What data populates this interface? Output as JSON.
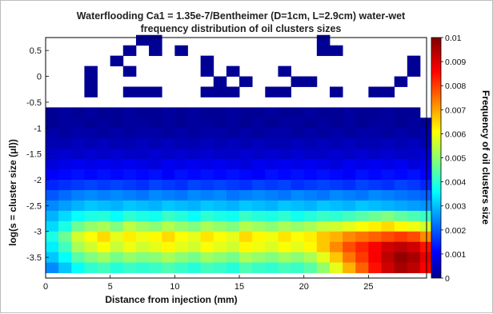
{
  "chart_data": {
    "type": "heatmap",
    "title": "Waterflooding Ca1 = 1.35e-7/Bentheimer (D=1cm, L=2.9cm) water-wet",
    "subtitle": "frequency distribution of oil clusters sizes",
    "xlabel": "Distance from injection (mm)",
    "ylabel": "log(s = cluster size (μl))",
    "colorbar_label": "Frequency of oil clusters size",
    "xlim": [
      0,
      29.5
    ],
    "ylim": [
      -3.9,
      0.75
    ],
    "clim": [
      0,
      0.01
    ],
    "colormap": "jet",
    "x_ticks": [
      "0",
      "5",
      "10",
      "15",
      "20",
      "25"
    ],
    "y_ticks": [
      "0.5",
      "0",
      "-0.5",
      "-1",
      "-1.5",
      "-2",
      "-2.5",
      "-3",
      "-3.5"
    ],
    "colorbar_ticks": [
      "0",
      "0.001",
      "0.002",
      "0.003",
      "0.004",
      "0.005",
      "0.006",
      "0.007",
      "0.008",
      "0.009",
      "0.01"
    ],
    "x_bin_width_mm": 1.0,
    "y_bin_centers": [
      0.7,
      0.5,
      0.3,
      0.1,
      -0.1,
      -0.3,
      -0.5,
      -0.7,
      -0.9,
      -1.1,
      -1.3,
      -1.5,
      -1.7,
      -1.9,
      -2.1,
      -2.3,
      -2.5,
      -2.7,
      -2.9,
      -3.1,
      -3.3,
      -3.5,
      -3.7
    ],
    "z": [
      [
        null,
        null,
        null,
        null,
        null,
        null,
        null,
        null,
        null,
        null,
        null,
        null,
        null,
        null,
        null,
        null,
        null,
        null,
        null,
        null,
        null,
        null,
        null,
        null,
        null,
        null,
        null,
        null,
        null,
        null
      ],
      [
        null,
        null,
        null,
        null,
        null,
        null,
        null,
        null,
        null,
        null,
        null,
        null,
        null,
        null,
        null,
        null,
        null,
        null,
        null,
        null,
        null,
        null,
        null,
        null,
        null,
        null,
        null,
        null,
        null,
        null
      ],
      [
        null,
        null,
        null,
        null,
        null,
        null,
        null,
        null,
        null,
        null,
        null,
        null,
        null,
        null,
        null,
        null,
        null,
        null,
        null,
        null,
        null,
        null,
        null,
        null,
        null,
        null,
        null,
        null,
        null,
        null
      ],
      [
        null,
        null,
        null,
        null,
        null,
        null,
        null,
        null,
        null,
        null,
        null,
        null,
        null,
        null,
        null,
        null,
        null,
        null,
        null,
        null,
        null,
        null,
        null,
        null,
        null,
        null,
        null,
        null,
        null,
        null
      ],
      [
        null,
        null,
        null,
        null,
        null,
        null,
        null,
        null,
        null,
        null,
        null,
        null,
        null,
        null,
        null,
        null,
        null,
        null,
        null,
        null,
        null,
        null,
        null,
        null,
        null,
        null,
        null,
        null,
        null,
        null
      ],
      [
        null,
        null,
        null,
        null,
        null,
        null,
        null,
        null,
        null,
        null,
        null,
        null,
        null,
        null,
        null,
        null,
        null,
        null,
        null,
        null,
        null,
        null,
        null,
        null,
        null,
        null,
        null,
        null,
        null,
        null
      ],
      [
        null,
        null,
        null,
        null,
        null,
        null,
        null,
        null,
        null,
        null,
        null,
        null,
        null,
        null,
        null,
        null,
        null,
        null,
        null,
        null,
        null,
        null,
        null,
        null,
        null,
        null,
        null,
        null,
        null,
        null
      ],
      [
        0.0002,
        0.0003,
        0.0002,
        0.0003,
        0.0002,
        0.0002,
        0.0003,
        0.0002,
        0.0002,
        0.0003,
        0.0002,
        0.0003,
        0.0002,
        0.0002,
        0.0003,
        0.0002,
        0.0002,
        0.0003,
        0.0002,
        0.0002,
        0.0003,
        0.0002,
        0.0002,
        0.0003,
        0.0002,
        0.0002,
        0.0003,
        0.0002,
        0.0002,
        null
      ],
      [
        0.0002,
        0.0003,
        0.0003,
        0.0002,
        0.0003,
        0.0002,
        0.0003,
        0.0003,
        0.0002,
        0.0003,
        0.0002,
        0.0003,
        0.0003,
        0.0002,
        0.0003,
        0.0002,
        0.0003,
        0.0002,
        0.0003,
        0.0003,
        0.0002,
        0.0003,
        0.0002,
        0.0003,
        0.0002,
        0.0003,
        0.0003,
        0.0002,
        0.0003,
        0.0002
      ],
      [
        0.0004,
        0.0003,
        0.0004,
        0.0004,
        0.0003,
        0.0004,
        0.0003,
        0.0004,
        0.0004,
        0.0003,
        0.0004,
        0.0003,
        0.0004,
        0.0004,
        0.0003,
        0.0004,
        0.0003,
        0.0004,
        0.0004,
        0.0003,
        0.0004,
        0.0003,
        0.0004,
        0.0003,
        0.0004,
        0.0004,
        0.0003,
        0.0004,
        0.0003,
        0.0004
      ],
      [
        0.0005,
        0.0005,
        0.0006,
        0.0005,
        0.0006,
        0.0005,
        0.0005,
        0.0006,
        0.0005,
        0.0006,
        0.0005,
        0.0005,
        0.0006,
        0.0005,
        0.0006,
        0.0005,
        0.0006,
        0.0005,
        0.0005,
        0.0006,
        0.0005,
        0.0006,
        0.0005,
        0.0006,
        0.0005,
        0.0005,
        0.0006,
        0.0005,
        0.0006,
        0.0005
      ],
      [
        0.0007,
        0.0008,
        0.0007,
        0.0008,
        0.0007,
        0.0008,
        0.0007,
        0.0007,
        0.0008,
        0.0007,
        0.0008,
        0.0007,
        0.0008,
        0.0007,
        0.0007,
        0.0008,
        0.0007,
        0.0008,
        0.0007,
        0.0008,
        0.0007,
        0.0007,
        0.0008,
        0.0007,
        0.0008,
        0.0007,
        0.0008,
        0.0007,
        0.0007,
        0.0008
      ],
      [
        0.0009,
        0.001,
        0.0011,
        0.001,
        0.0011,
        0.001,
        0.0011,
        0.001,
        0.0009,
        0.0011,
        0.001,
        0.0011,
        0.001,
        0.0011,
        0.001,
        0.0009,
        0.0011,
        0.001,
        0.0011,
        0.001,
        0.0011,
        0.001,
        0.0009,
        0.0011,
        0.001,
        0.0011,
        0.001,
        0.0011,
        0.0009,
        0.001
      ],
      [
        0.0012,
        0.0013,
        0.0014,
        0.0013,
        0.0014,
        0.0013,
        0.0014,
        0.0013,
        0.0014,
        0.0012,
        0.0014,
        0.0013,
        0.0014,
        0.0013,
        0.0014,
        0.0013,
        0.0012,
        0.0014,
        0.0013,
        0.0014,
        0.0013,
        0.0014,
        0.0013,
        0.0012,
        0.0014,
        0.0013,
        0.0014,
        0.0013,
        0.0014,
        0.0012
      ],
      [
        0.0016,
        0.0017,
        0.0018,
        0.0019,
        0.0018,
        0.0019,
        0.0018,
        0.0017,
        0.0019,
        0.0018,
        0.0017,
        0.0019,
        0.0018,
        0.0019,
        0.0018,
        0.0017,
        0.0019,
        0.0018,
        0.0019,
        0.0017,
        0.0018,
        0.0019,
        0.0018,
        0.0017,
        0.0019,
        0.0018,
        0.0017,
        0.0019,
        0.0018,
        0.0016
      ],
      [
        0.0021,
        0.0023,
        0.0025,
        0.0026,
        0.0025,
        0.0026,
        0.0025,
        0.0024,
        0.0026,
        0.0025,
        0.0024,
        0.0026,
        0.0025,
        0.0026,
        0.0024,
        0.0025,
        0.0026,
        0.0025,
        0.0024,
        0.0026,
        0.0025,
        0.0024,
        0.0026,
        0.0025,
        0.0024,
        0.0026,
        0.0025,
        0.0024,
        0.0023,
        0.0022
      ],
      [
        0.0026,
        0.0028,
        0.003,
        0.0032,
        0.0031,
        0.003,
        0.0032,
        0.0031,
        0.003,
        0.0032,
        0.0031,
        0.003,
        0.0032,
        0.0031,
        0.003,
        0.0032,
        0.0031,
        0.003,
        0.0032,
        0.0031,
        0.003,
        0.0032,
        0.0031,
        0.003,
        0.0032,
        0.0031,
        0.003,
        0.0029,
        0.0028,
        0.0027
      ],
      [
        0.003,
        0.0034,
        0.0038,
        0.004,
        0.0041,
        0.0038,
        0.0042,
        0.004,
        0.0039,
        0.0043,
        0.0041,
        0.0038,
        0.0042,
        0.004,
        0.0039,
        0.0043,
        0.0041,
        0.004,
        0.0042,
        0.0039,
        0.0041,
        0.0043,
        0.0042,
        0.0044,
        0.0046,
        0.0048,
        0.005,
        0.0047,
        0.0045,
        0.0043
      ],
      [
        0.0034,
        0.004,
        0.0048,
        0.0052,
        0.0054,
        0.005,
        0.0056,
        0.0053,
        0.0051,
        0.0055,
        0.0052,
        0.005,
        0.0054,
        0.0052,
        0.005,
        0.0055,
        0.0053,
        0.0051,
        0.0054,
        0.0052,
        0.0054,
        0.0057,
        0.0058,
        0.006,
        0.0062,
        0.0064,
        0.0066,
        0.0063,
        0.0061,
        0.0058
      ],
      [
        0.004,
        0.0048,
        0.0058,
        0.0062,
        0.0066,
        0.006,
        0.0064,
        0.0061,
        0.0063,
        0.0066,
        0.0062,
        0.006,
        0.0065,
        0.0062,
        0.006,
        0.0066,
        0.0063,
        0.0061,
        0.0065,
        0.0062,
        0.0064,
        0.0068,
        0.007,
        0.0074,
        0.0076,
        0.0078,
        0.008,
        0.0082,
        0.008,
        0.0074
      ],
      [
        0.0036,
        0.0044,
        0.0054,
        0.0058,
        0.0062,
        0.0057,
        0.0061,
        0.0058,
        0.006,
        0.0063,
        0.006,
        0.0058,
        0.0062,
        0.006,
        0.0058,
        0.0063,
        0.0061,
        0.0059,
        0.0062,
        0.006,
        0.0063,
        0.0068,
        0.0074,
        0.008,
        0.0084,
        0.0088,
        0.0092,
        0.0094,
        0.0092,
        0.0086
      ],
      [
        0.0032,
        0.0038,
        0.0046,
        0.005,
        0.0053,
        0.0049,
        0.0052,
        0.005,
        0.0051,
        0.0054,
        0.0051,
        0.0049,
        0.0053,
        0.0051,
        0.0049,
        0.0054,
        0.0052,
        0.005,
        0.0053,
        0.0051,
        0.0054,
        0.006,
        0.0068,
        0.0076,
        0.0082,
        0.0088,
        0.0094,
        0.0098,
        0.0096,
        0.009
      ],
      [
        0.0026,
        0.0032,
        0.0038,
        0.0042,
        0.0044,
        0.0041,
        0.0043,
        0.0042,
        0.0043,
        0.0045,
        0.0043,
        0.0041,
        0.0044,
        0.0043,
        0.0041,
        0.0045,
        0.0043,
        0.0042,
        0.0044,
        0.0043,
        0.0046,
        0.0052,
        0.006,
        0.007,
        0.0078,
        0.0086,
        0.0092,
        0.0096,
        0.0094,
        0.0088
      ]
    ],
    "sparse_large_clusters": [
      [
        7,
        0.7,
        0.0002
      ],
      [
        8,
        0.7,
        0.0002
      ],
      [
        21,
        0.7,
        0.0002
      ],
      [
        6,
        0.5,
        0.0002
      ],
      [
        8,
        0.5,
        0.0002
      ],
      [
        10,
        0.5,
        0.0002
      ],
      [
        21,
        0.5,
        0.0002
      ],
      [
        22,
        0.5,
        0.0002
      ],
      [
        5,
        0.3,
        0.0002
      ],
      [
        12,
        0.3,
        0.0002
      ],
      [
        28,
        0.3,
        0.0002
      ],
      [
        3,
        0.1,
        0.0002
      ],
      [
        6,
        0.1,
        0.0002
      ],
      [
        12,
        0.1,
        0.0002
      ],
      [
        14,
        0.1,
        0.0002
      ],
      [
        18,
        0.1,
        0.0002
      ],
      [
        28,
        0.1,
        0.0002
      ],
      [
        3,
        -0.1,
        0.0002
      ],
      [
        13,
        -0.1,
        0.0002
      ],
      [
        15,
        -0.1,
        0.0002
      ],
      [
        19,
        -0.1,
        0.0002
      ],
      [
        20,
        -0.1,
        0.0002
      ],
      [
        27,
        -0.1,
        0.0002
      ],
      [
        3,
        -0.3,
        0.0002
      ],
      [
        6,
        -0.3,
        0.0002
      ],
      [
        7,
        -0.3,
        0.0002
      ],
      [
        8,
        -0.3,
        0.0002
      ],
      [
        12,
        -0.3,
        0.0002
      ],
      [
        13,
        -0.3,
        0.0002
      ],
      [
        14,
        -0.3,
        0.0002
      ],
      [
        17,
        -0.3,
        0.0002
      ],
      [
        18,
        -0.3,
        0.0002
      ],
      [
        22,
        -0.3,
        0.0002
      ],
      [
        25,
        -0.3,
        0.0002
      ],
      [
        26,
        -0.3,
        0.0002
      ]
    ]
  }
}
